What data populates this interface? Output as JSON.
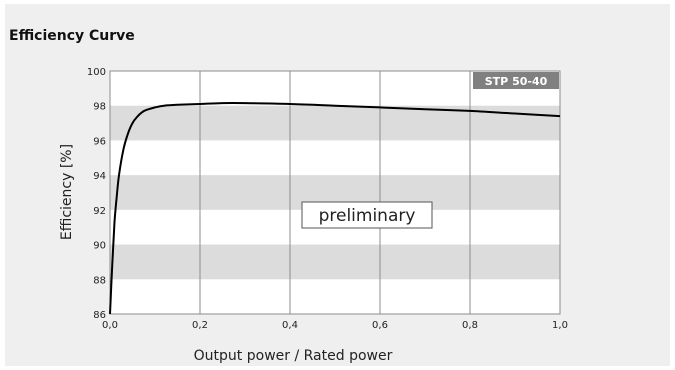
{
  "chart_data": {
    "type": "line",
    "title": "Efficiency Curve",
    "xlabel": "Output power / Rated power",
    "ylabel": "Efficiency [%]",
    "xlim": [
      0,
      1
    ],
    "ylim": [
      86,
      100
    ],
    "x_ticks": [
      "0,0",
      "0,2",
      "0,4",
      "0,6",
      "0,8",
      "1,0"
    ],
    "y_ticks": [
      "86",
      "88",
      "90",
      "92",
      "94",
      "96",
      "98",
      "100"
    ],
    "grid": "vertical lines, alternating horizontal bands",
    "badge": "STP 50-40",
    "annotation": "preliminary",
    "series": [
      {
        "x": [
          0.0,
          0.005,
          0.01,
          0.015,
          0.02,
          0.03,
          0.04,
          0.05,
          0.06,
          0.07,
          0.08,
          0.1,
          0.12,
          0.15,
          0.2,
          0.25,
          0.3,
          0.4,
          0.5,
          0.6,
          0.7,
          0.8,
          0.9,
          1.0
        ],
        "y": [
          86.0,
          88.9,
          91.3,
          92.8,
          94.0,
          95.5,
          96.4,
          97.0,
          97.35,
          97.6,
          97.75,
          97.9,
          98.0,
          98.05,
          98.1,
          98.15,
          98.15,
          98.1,
          98.0,
          97.9,
          97.8,
          97.7,
          97.55,
          97.4
        ]
      }
    ]
  },
  "colors": {
    "panel_bg": "#efefef",
    "plot_bg": "#ffffff",
    "band": "#dcdcdc",
    "grid": "#8c8c8c",
    "curve": "#000000",
    "badge_bg": "#808080"
  }
}
